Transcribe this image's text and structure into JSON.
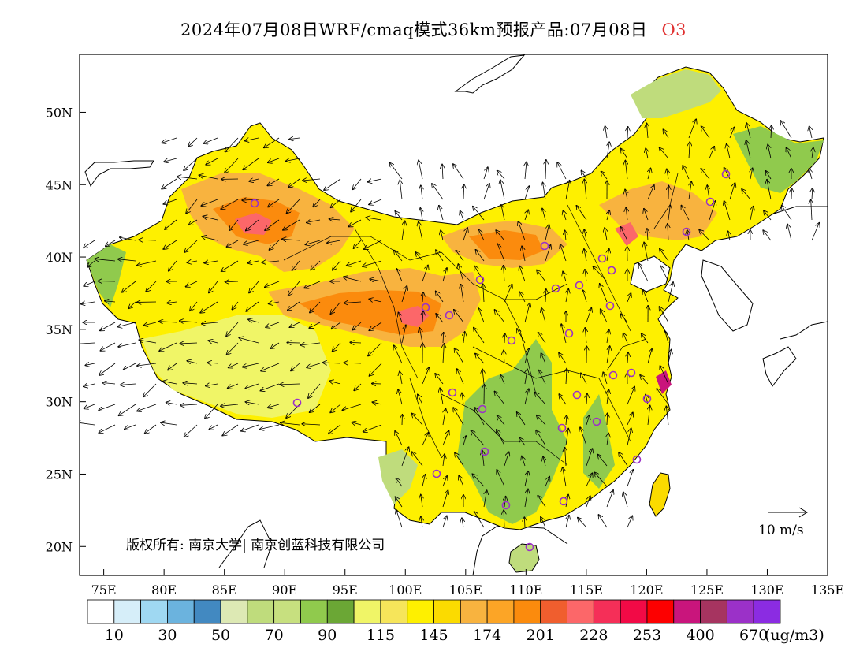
{
  "title": {
    "main": "2024年07月08日WRF/cmaq模式36km预报产品:07月08日",
    "pollutant": "O3"
  },
  "axes": {
    "lat_labels": [
      "50N",
      "45N",
      "40N",
      "35N",
      "30N",
      "25N",
      "20N"
    ],
    "lon_labels": [
      "75E",
      "80E",
      "85E",
      "90E",
      "95E",
      "100E",
      "105E",
      "110E",
      "115E",
      "120E",
      "125E",
      "130E",
      "135E"
    ],
    "lon_range": [
      73,
      135
    ],
    "lat_range": [
      18,
      54
    ]
  },
  "wind_reference": {
    "label": "10 m/s"
  },
  "copyright": {
    "text": "版权所有: 南京大学| 南京创蓝科技有限公司"
  },
  "legend": {
    "unit": "(ug/m3)",
    "labels": [
      "10",
      "30",
      "50",
      "70",
      "90",
      "115",
      "145",
      "174",
      "201",
      "228",
      "253",
      "400",
      "670"
    ],
    "colors": [
      "#ffffff",
      "#d6eef9",
      "#9fd8f2",
      "#6bb3de",
      "#4289c1",
      "#dde9b4",
      "#bfdc7c",
      "#c7e07f",
      "#90ca4d",
      "#6ba735",
      "#f0f567",
      "#f6e55a",
      "#fef000",
      "#fbdb00",
      "#f8b33f",
      "#fca526",
      "#fb8b0d",
      "#f05e2e",
      "#fc6769",
      "#f52f58",
      "#f20a46",
      "#fd0000",
      "#c9157c",
      "#a63460",
      "#9b31c8",
      "#8b2ce2"
    ]
  },
  "map": {
    "palette": {
      "low_green": "#90ca4d",
      "pale_green": "#bfdc7c",
      "yellow": "#fef000",
      "pale_yellow": "#f0f567",
      "orange": "#f8b33f",
      "deep_orange": "#fb8b0d",
      "pink": "#fc6769",
      "magenta": "#c9157c"
    },
    "city_marker_color": "#9b31c8"
  }
}
